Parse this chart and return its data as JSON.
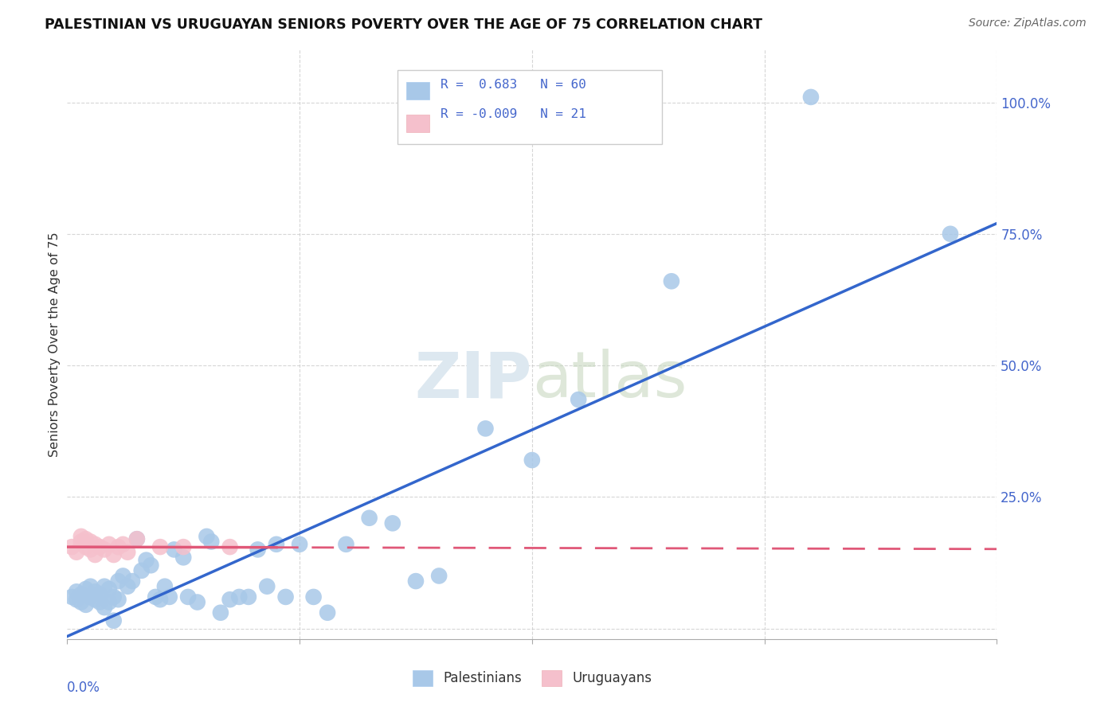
{
  "title": "PALESTINIAN VS URUGUAYAN SENIORS POVERTY OVER THE AGE OF 75 CORRELATION CHART",
  "source": "Source: ZipAtlas.com",
  "ylabel": "Seniors Poverty Over the Age of 75",
  "xlim": [
    0.0,
    0.2
  ],
  "ylim": [
    -0.02,
    1.1
  ],
  "ytick_vals": [
    0.0,
    0.25,
    0.5,
    0.75,
    1.0
  ],
  "ytick_labels": [
    "",
    "25.0%",
    "50.0%",
    "75.0%",
    "100.0%"
  ],
  "xtick_vals": [
    0.0,
    0.05,
    0.1,
    0.15,
    0.2
  ],
  "palestinian_R": 0.683,
  "palestinian_N": 60,
  "uruguayan_R": -0.009,
  "uruguayan_N": 21,
  "blue_scatter_color": "#a8c8e8",
  "pink_scatter_color": "#f5c0cc",
  "blue_line_color": "#3366cc",
  "pink_line_color": "#e05878",
  "grid_color": "#cccccc",
  "watermark_color": "#dde8f0",
  "background_color": "#ffffff",
  "tick_label_color": "#4466cc",
  "title_color": "#111111",
  "source_color": "#666666",
  "ylabel_color": "#333333",
  "legend_border_color": "#cccccc",
  "palestinian_x": [
    0.001,
    0.002,
    0.002,
    0.003,
    0.003,
    0.004,
    0.004,
    0.005,
    0.005,
    0.006,
    0.006,
    0.007,
    0.007,
    0.008,
    0.008,
    0.009,
    0.009,
    0.01,
    0.01,
    0.011,
    0.011,
    0.012,
    0.013,
    0.014,
    0.015,
    0.016,
    0.017,
    0.018,
    0.019,
    0.02,
    0.021,
    0.022,
    0.023,
    0.025,
    0.026,
    0.028,
    0.03,
    0.031,
    0.033,
    0.035,
    0.037,
    0.039,
    0.041,
    0.043,
    0.045,
    0.047,
    0.05,
    0.053,
    0.056,
    0.06,
    0.065,
    0.07,
    0.075,
    0.08,
    0.09,
    0.1,
    0.11,
    0.13,
    0.16,
    0.19
  ],
  "palestinian_y": [
    0.06,
    0.055,
    0.07,
    0.05,
    0.065,
    0.045,
    0.075,
    0.06,
    0.08,
    0.055,
    0.07,
    0.05,
    0.065,
    0.08,
    0.04,
    0.075,
    0.05,
    0.06,
    0.015,
    0.09,
    0.055,
    0.1,
    0.08,
    0.09,
    0.17,
    0.11,
    0.13,
    0.12,
    0.06,
    0.055,
    0.08,
    0.06,
    0.15,
    0.135,
    0.06,
    0.05,
    0.175,
    0.165,
    0.03,
    0.055,
    0.06,
    0.06,
    0.15,
    0.08,
    0.16,
    0.06,
    0.16,
    0.06,
    0.03,
    0.16,
    0.21,
    0.2,
    0.09,
    0.1,
    0.38,
    0.32,
    0.435,
    0.66,
    1.01,
    0.75
  ],
  "uruguayan_x": [
    0.001,
    0.002,
    0.003,
    0.003,
    0.004,
    0.004,
    0.005,
    0.005,
    0.006,
    0.006,
    0.007,
    0.008,
    0.009,
    0.01,
    0.011,
    0.012,
    0.013,
    0.015,
    0.02,
    0.025,
    0.035
  ],
  "uruguayan_y": [
    0.155,
    0.145,
    0.165,
    0.175,
    0.155,
    0.17,
    0.15,
    0.165,
    0.14,
    0.16,
    0.155,
    0.15,
    0.16,
    0.14,
    0.155,
    0.16,
    0.145,
    0.17,
    0.155,
    0.155,
    0.155
  ]
}
